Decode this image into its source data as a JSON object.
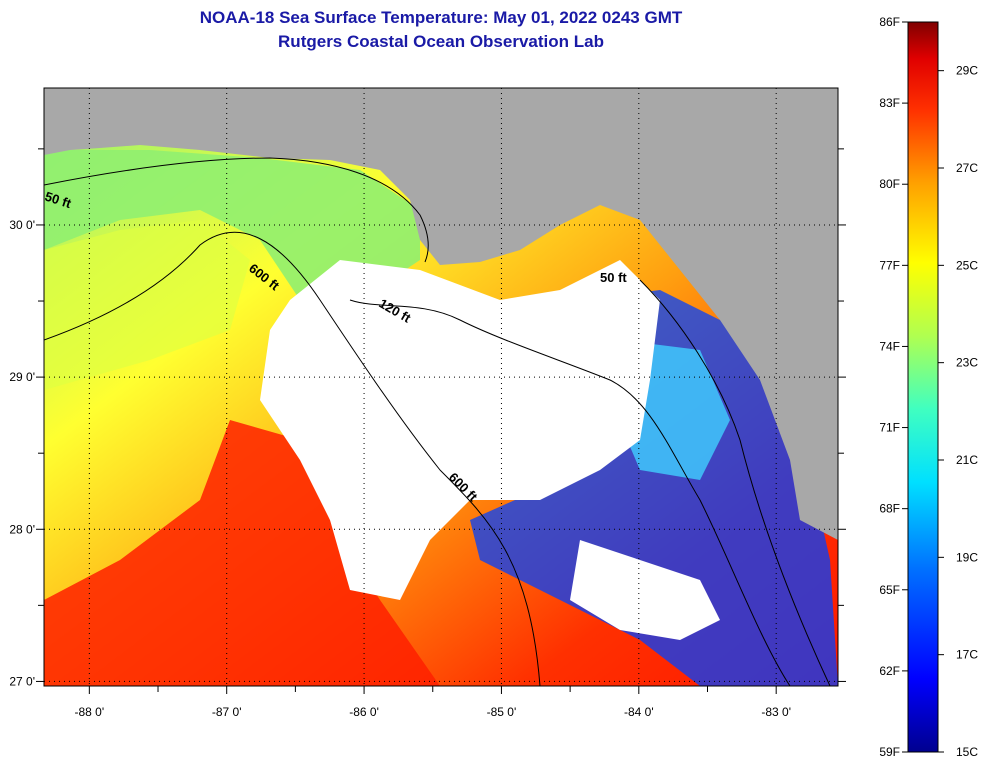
{
  "header": {
    "title": "NOAA-18 Sea Surface Temperature:  May 01, 2022 0243 GMT",
    "subtitle": "Rutgers Coastal Ocean Observation Lab"
  },
  "axes": {
    "lon_ticks": [
      {
        "value": -88,
        "label": "-88 0'"
      },
      {
        "value": -87,
        "label": "-87 0'"
      },
      {
        "value": -86,
        "label": "-86 0'"
      },
      {
        "value": -85,
        "label": "-85 0'"
      },
      {
        "value": -84,
        "label": "-84 0'"
      },
      {
        "value": -83,
        "label": "-83 0'"
      }
    ],
    "lat_ticks": [
      {
        "value": 30,
        "label": "30 0'"
      },
      {
        "value": 29,
        "label": "29 0'"
      },
      {
        "value": 28,
        "label": "28 0'"
      },
      {
        "value": 27,
        "label": "27 0'"
      }
    ],
    "lon_range": [
      -88.33,
      -82.55
    ],
    "lat_range": [
      26.97,
      30.9
    ]
  },
  "isobaths": [
    {
      "label": "50 ft"
    },
    {
      "label": "600 ft"
    },
    {
      "label": "120 ft"
    },
    {
      "label": "50 ft"
    },
    {
      "label": "600 ft"
    }
  ],
  "colorbar": {
    "fahrenheit": [
      "86F",
      "83F",
      "80F",
      "77F",
      "74F",
      "71F",
      "68F",
      "65F",
      "62F",
      "59F"
    ],
    "celsius": [
      "29C",
      "27C",
      "25C",
      "23C",
      "21C",
      "19C",
      "17C",
      "15C"
    ],
    "range_f": [
      59,
      86
    ],
    "colors": [
      "#00008f",
      "#0000ff",
      "#0060ff",
      "#00c8ff",
      "#40ffbf",
      "#a0ff60",
      "#ffff00",
      "#ffa000",
      "#ff4000",
      "#ff0000",
      "#800000"
    ]
  },
  "colors": {
    "land": "#a8a8a8",
    "cloud": "#ffffff"
  }
}
